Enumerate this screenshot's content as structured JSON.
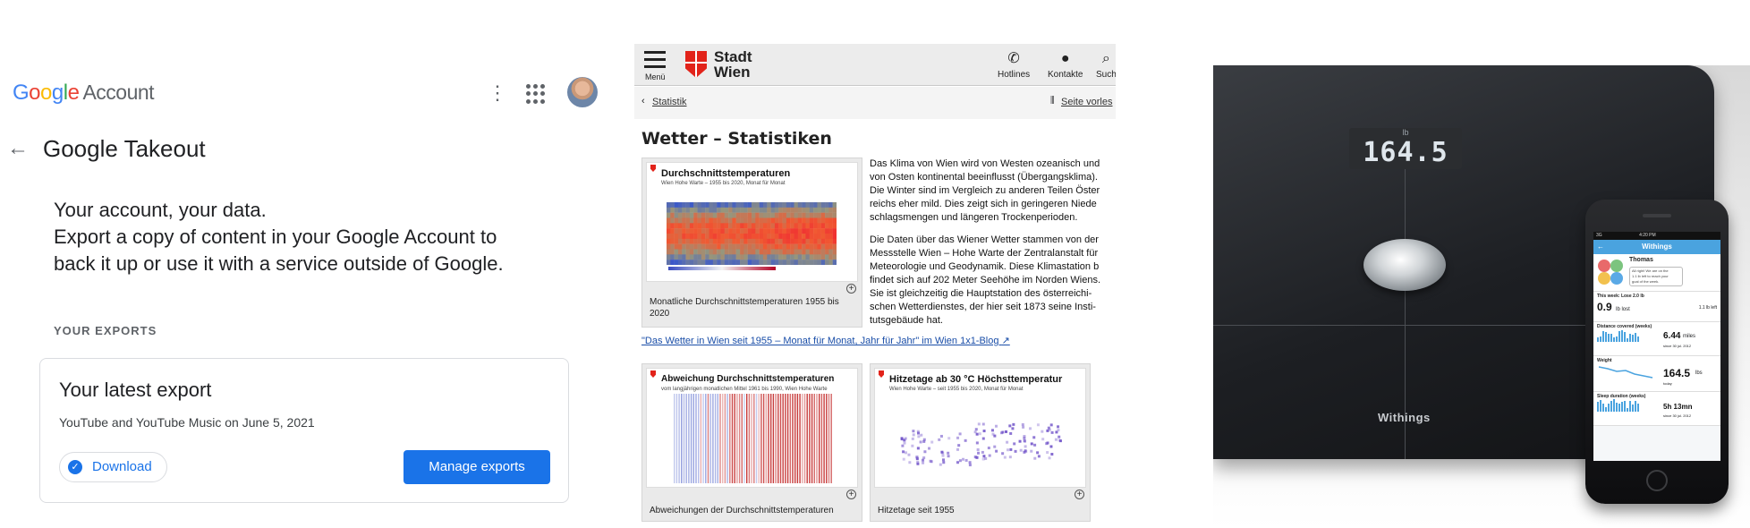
{
  "google": {
    "logo_letters": [
      "G",
      "o",
      "o",
      "g",
      "l",
      "e"
    ],
    "account_label": "Account",
    "more_icon": "⋮",
    "page_title": "Google Takeout",
    "intro_lines": [
      "Your account, your data.",
      "Export a copy of content in your Google Account to",
      "back it up or use it with a service outside of Google."
    ],
    "section_label": "YOUR EXPORTS",
    "card_title": "Your latest export",
    "card_subtitle": "YouTube and YouTube Music on June 5, 2021",
    "download_label": "Download",
    "manage_label": "Manage exports",
    "accent": "#1a73e8"
  },
  "wien": {
    "menu_label": "Menü",
    "brand_line1": "Stadt",
    "brand_line2": "Wien",
    "tools": [
      {
        "icon": "phone-icon",
        "label": "Hotlines"
      },
      {
        "icon": "person-icon",
        "label": "Kontakte"
      },
      {
        "icon": "search-icon",
        "label": "Such"
      }
    ],
    "breadcrumb": "Statistik",
    "read_aloud": "Seite vorles",
    "heading": "Wetter – Statistiken",
    "para1": [
      "Das Klima von Wien wird von Westen ozeanisch und",
      "von Osten kontinental beeinflusst (Übergangsklima).",
      "Die Winter sind im Vergleich zu anderen Teilen Öster",
      "reichs eher mild. Dies zeigt sich in geringeren Niede",
      "schlagsmengen und längeren Trockenperioden."
    ],
    "para2": [
      "Die Daten über das Wiener Wetter stammen von der",
      "Messstelle Wien – Hohe Warte der Zentralanstalt für",
      "Meteorologie und Geodynamik. Diese Klimastation b",
      "findet sich auf 202 Meter Seehöhe im Norden Wiens.",
      "Sie ist gleichzeitig die Hauptstation des österreichi-",
      "schen Wetterdienstes, der hier seit 1873 seine Insti-",
      "tutsgebäude hat."
    ],
    "link": "\"Das Wetter in Wien seit 1955 – Monat für Monat, Jahr für Jahr\" im Wien 1x1-Blog",
    "figures": [
      {
        "title": "Durchschnittstemperaturen",
        "subtitle": "Wien Hohe Warte – 1955 bis 2020, Monat für Monat",
        "caption_lines": [
          "Monatliche Durchschnittstemperaturen 1955 bis",
          "2020"
        ]
      },
      {
        "title": "Abweichung Durchschnittstemperaturen",
        "subtitle": "vom langjährigen monatlichen Mittel 1961 bis 1990, Wien Hohe Warte",
        "caption_lines": [
          "Abweichungen der Durchschnittstemperaturen"
        ]
      },
      {
        "title": "Hitzetage ab 30 °C Höchsttemperatur",
        "subtitle": "Wien Hohe Warte – seit 1955 bis 2020, Monat für Monat",
        "caption_lines": [
          "Hitzetage seit 1955"
        ]
      }
    ],
    "brand_color": "#e2231a"
  },
  "withings": {
    "scale_unit": "lb",
    "scale_value": "164.5",
    "brand": "Withings",
    "app": {
      "status_left": "3G",
      "status_time": "4:20 PM",
      "nav_title": "Withings",
      "user_name": "Thomas",
      "message": [
        "All right! We are on the",
        "1.1 lb left to reach your",
        "goal of the week."
      ],
      "weekly_label": "This week: Lose 2.0 lb",
      "lost_value": "0.9",
      "lost_unit": "lb lost",
      "left_text": "1.1 lb left",
      "distance_label": "Distance covered (weeks)",
      "distance_value": "6.44",
      "distance_unit": "miles",
      "distance_note": "since 30 jul. 2012",
      "weight_label": "Weight",
      "weight_value": "164.5",
      "weight_unit": "lbs",
      "weight_note": "today",
      "sleep_label": "Sleep duration (weeks)",
      "sleep_value": "5h 13mn",
      "sleep_note": "since 30 jul. 2012",
      "accent": "#4aa3df"
    }
  }
}
